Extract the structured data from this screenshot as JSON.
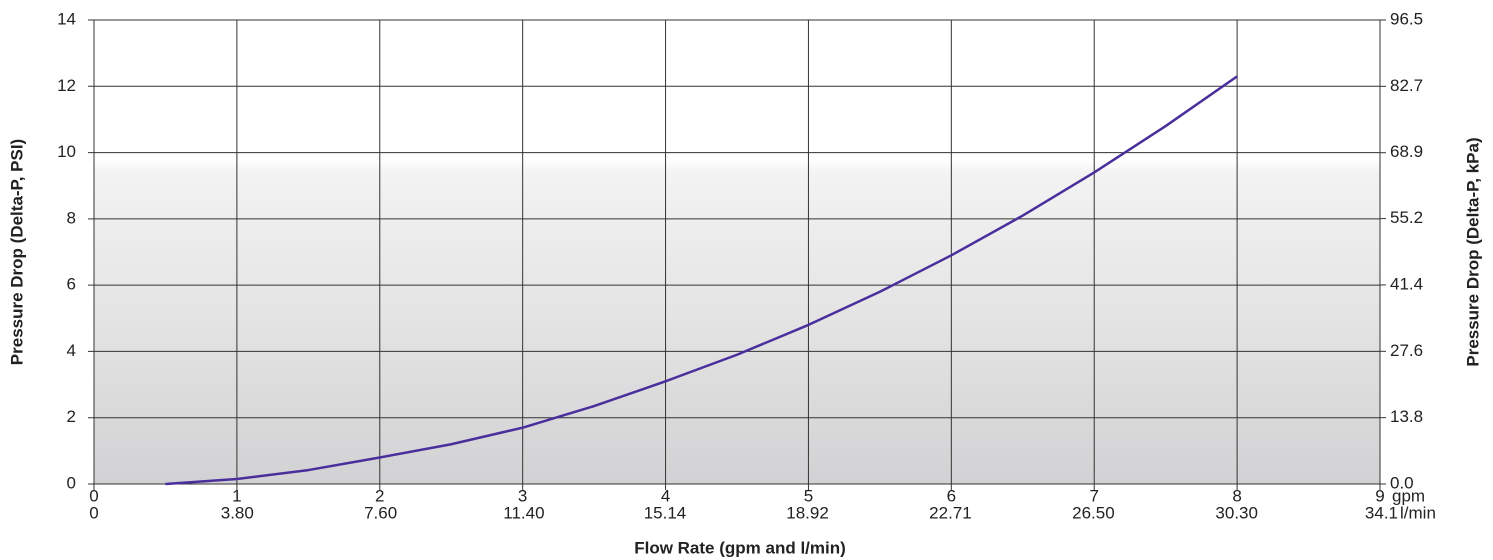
{
  "chart_data": {
    "type": "line",
    "x_title": "Flow Rate (gpm and l/min)",
    "y_title": "Pressure Drop (Delta-P, PSI)",
    "y2_title": "Pressure Drop (Delta-P, kPa)",
    "x_unit": "gpm",
    "x2_unit": "l/min",
    "x": [
      0.5,
      1,
      1.5,
      2,
      2.5,
      3,
      3.5,
      4,
      4.5,
      5,
      5.5,
      6,
      6.5,
      7,
      7.5,
      8
    ],
    "series": [
      {
        "color": "#4a2f9c",
        "values": [
          0,
          0.15,
          0.42,
          0.8,
          1.2,
          1.7,
          2.35,
          3.1,
          3.9,
          4.8,
          5.8,
          6.9,
          8.1,
          9.4,
          10.8,
          12.3
        ]
      }
    ],
    "xlim": [
      0,
      9
    ],
    "xticks": [
      0,
      1,
      2,
      3,
      4,
      5,
      6,
      7,
      8,
      9
    ],
    "x2lim": [
      0,
      34.1
    ],
    "x2ticks": [
      0,
      {
        "value": 3.8,
        "label": "3.80"
      },
      {
        "value": 7.6,
        "label": "7.60"
      },
      {
        "value": 11.4,
        "label": "11.40"
      },
      15.14,
      18.92,
      22.71,
      {
        "value": 26.5,
        "label": "26.50"
      },
      {
        "value": 30.3,
        "label": "30.30"
      },
      34.1
    ],
    "ylim": [
      0,
      14
    ],
    "yticks": [
      0,
      2,
      4,
      6,
      8,
      10,
      12,
      14
    ],
    "y2lim": [
      0,
      96.5
    ],
    "y2ticks": [
      {
        "value": 0,
        "label": "0.0"
      },
      13.8,
      27.6,
      41.4,
      55.2,
      68.9,
      82.7,
      96.5
    ],
    "grid": true
  }
}
